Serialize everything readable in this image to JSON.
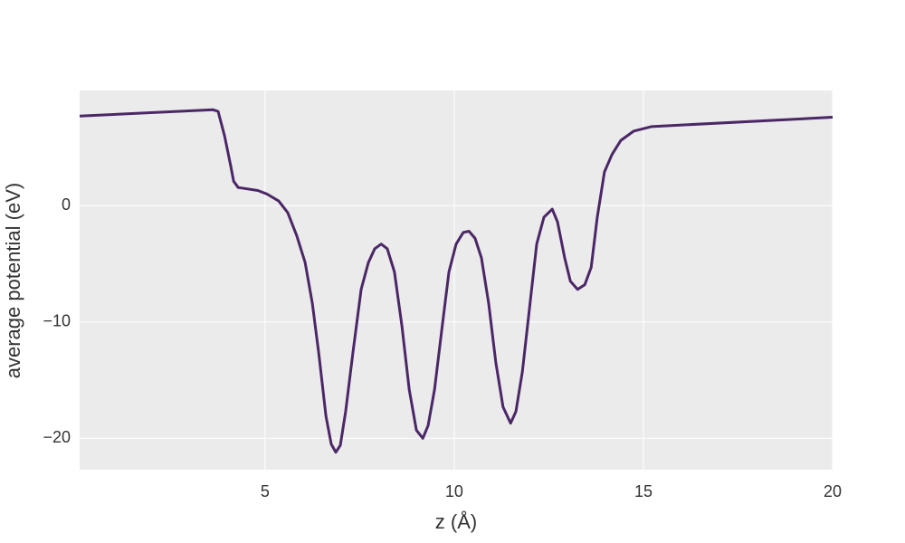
{
  "chart_data": {
    "type": "line",
    "x_label": "z (Å)",
    "y_label": "average potential (eV)",
    "xlim": [
      0.1,
      20
    ],
    "ylim": [
      -22.7,
      9.9
    ],
    "xticks": [
      5,
      10,
      15,
      20
    ],
    "yticks": [
      {
        "value": -20,
        "label": "−20"
      },
      {
        "value": -10,
        "label": "−10"
      },
      0
    ],
    "grid": true,
    "background": "#ebebeb",
    "series": [
      {
        "color": "#4b2766",
        "x": [
          0.1,
          3.62,
          3.76,
          3.93,
          4.1,
          4.17,
          4.29,
          4.81,
          5.05,
          5.36,
          5.6,
          5.84,
          6.06,
          6.25,
          6.42,
          6.61,
          6.75,
          6.87,
          6.99,
          7.13,
          7.32,
          7.54,
          7.73,
          7.9,
          8.07,
          8.23,
          8.42,
          8.62,
          8.81,
          9.0,
          9.17,
          9.31,
          9.48,
          9.67,
          9.86,
          10.05,
          10.24,
          10.39,
          10.55,
          10.72,
          10.91,
          11.1,
          11.29,
          11.49,
          11.63,
          11.8,
          11.99,
          12.18,
          12.37,
          12.59,
          12.73,
          12.92,
          13.07,
          13.26,
          13.45,
          13.62,
          13.78,
          13.97,
          14.17,
          14.4,
          14.74,
          15.22,
          20
        ],
        "values": [
          7.7,
          8.25,
          8.1,
          6.0,
          3.3,
          2.1,
          1.56,
          1.3,
          1.0,
          0.4,
          -0.6,
          -2.6,
          -4.9,
          -8.4,
          -12.7,
          -18.1,
          -20.5,
          -21.2,
          -20.6,
          -17.7,
          -12.7,
          -7.2,
          -4.9,
          -3.7,
          -3.3,
          -3.7,
          -5.7,
          -10.4,
          -15.8,
          -19.3,
          -20.0,
          -18.9,
          -15.8,
          -10.7,
          -5.7,
          -3.3,
          -2.3,
          -2.2,
          -2.8,
          -4.5,
          -8.4,
          -13.5,
          -17.3,
          -18.7,
          -17.7,
          -14.3,
          -8.8,
          -3.3,
          -1.0,
          -0.3,
          -1.4,
          -4.5,
          -6.5,
          -7.2,
          -6.8,
          -5.3,
          -1.0,
          2.9,
          4.4,
          5.6,
          6.4,
          6.8,
          7.6
        ]
      }
    ]
  }
}
